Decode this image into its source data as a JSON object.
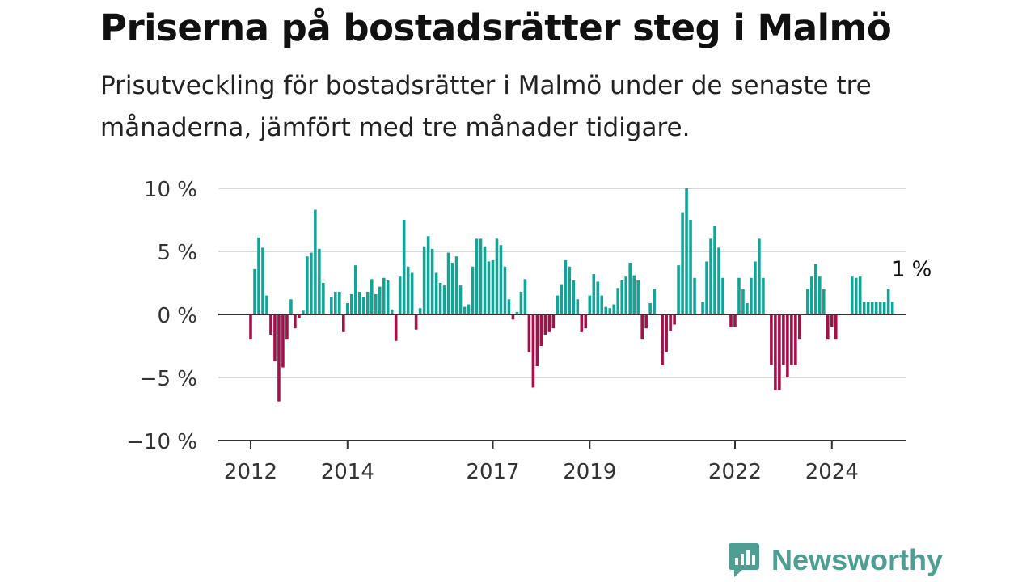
{
  "header": {
    "title": "Priserna på bostadsrätter steg i Malmö",
    "subtitle": "Prisutveckling för bostadsrätter i Malmö under de senaste tre månaderna, jämfört med tre månader tidigare."
  },
  "brand": {
    "name": "Newsworthy",
    "icon": "newsworthy-logo-icon",
    "color": "#4f9e94"
  },
  "chart_data": {
    "type": "bar",
    "title": "",
    "xlabel": "",
    "ylabel": "",
    "ylim": [
      -10,
      10
    ],
    "yticks": [
      10,
      5,
      0,
      -5,
      -10
    ],
    "ytick_labels": [
      "10 %",
      "5 %",
      "0 %",
      "−5 %",
      "−10 %"
    ],
    "xticks": [
      2012,
      2014,
      2017,
      2019,
      2022,
      2024
    ],
    "xtick_labels": [
      "2012",
      "2014",
      "2017",
      "2019",
      "2022",
      "2024"
    ],
    "x_start": 2012.0,
    "x_step": 0.08333,
    "grid": true,
    "legend": "none",
    "positive_color": "#14a497",
    "negative_color": "#a3104a",
    "annotation": {
      "text": "1 %",
      "target": "last"
    },
    "values": [
      -2,
      3.6,
      6.1,
      5.3,
      1.5,
      -1.6,
      -3.7,
      -6.9,
      -4.2,
      -2,
      1.2,
      -1.1,
      -0.3,
      0.3,
      4.6,
      4.9,
      8.3,
      5.2,
      2.5,
      0,
      1.4,
      1.8,
      1.8,
      -1.4,
      0.9,
      1.6,
      3.9,
      1.8,
      1.4,
      1.8,
      2.8,
      1.6,
      2.2,
      2.9,
      2.7,
      0.4,
      -2.1,
      3,
      7.5,
      3.8,
      3.3,
      -1.2,
      0.5,
      5.4,
      6.2,
      5.2,
      3.3,
      2.5,
      2.3,
      4.9,
      4.1,
      4.6,
      2.3,
      0.6,
      0.8,
      3.8,
      6,
      6,
      5.4,
      4.2,
      4.3,
      6,
      5.5,
      3.8,
      1.2,
      -0.4,
      0.2,
      1.8,
      2.8,
      -3,
      -5.8,
      -4.1,
      -2.5,
      -1.6,
      -1.4,
      -1.1,
      1.5,
      2.4,
      4.3,
      3.8,
      2.7,
      1.2,
      -1.4,
      -1.1,
      1.5,
      3.2,
      2.6,
      1.5,
      0.6,
      0.5,
      0.8,
      2.1,
      2.7,
      3,
      4.1,
      3.1,
      2.7,
      -2,
      -1.1,
      0.9,
      2,
      0,
      -4,
      -3,
      -1.3,
      -0.8,
      3.9,
      8.1,
      10,
      7.5,
      2.9,
      0,
      1,
      4.2,
      6,
      7,
      5.3,
      2.9,
      0,
      -1,
      -1,
      2.9,
      2,
      0.9,
      2.9,
      4.2,
      6,
      2.9,
      0,
      -4,
      -6,
      -6,
      -4,
      -5,
      -4,
      -4,
      -2,
      0,
      2,
      3,
      4,
      3,
      2,
      -2,
      -1,
      -2,
      0,
      0,
      0,
      3,
      2.9,
      3,
      1,
      1,
      1,
      1,
      1,
      1,
      2,
      1
    ]
  }
}
